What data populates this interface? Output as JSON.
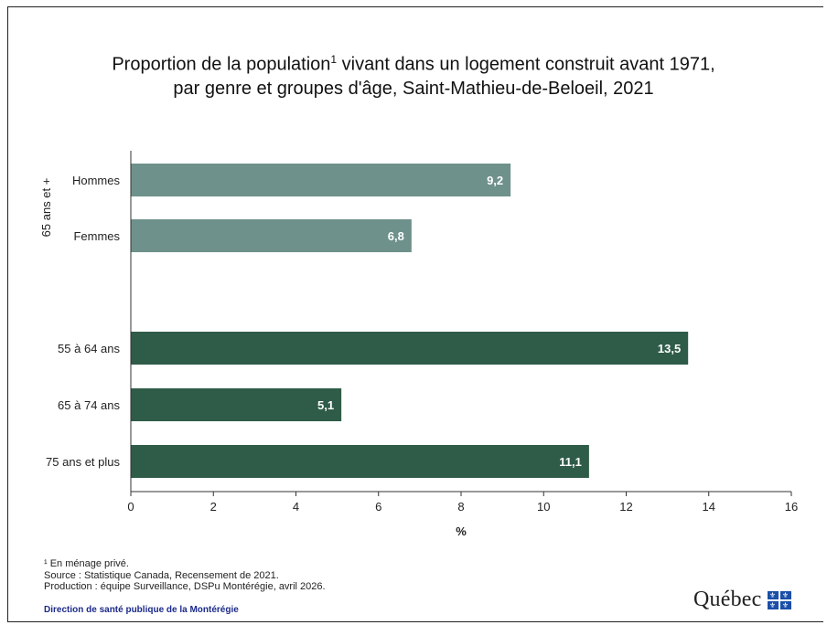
{
  "title_line1": "Proportion de la population",
  "title_sup": "1",
  "title_line1_rest": " vivant dans un logement construit avant 1971,",
  "title_line2": "par genre et groupes d'âge, Saint-Mathieu-de-Beloeil, 2021",
  "notes": {
    "line1": "¹ En ménage privé.",
    "line2": "Source : Statistique Canada, Recensement de 2021.",
    "line3": "Production : équipe Surveillance, DSPu Montérégie, avril 2026."
  },
  "department": "Direction de santé publique de la Montérégie",
  "logo_text": "Québec",
  "colors": {
    "light_bar": "#6e918b",
    "dark_bar": "#2f5c48",
    "axis": "#333333"
  },
  "chart_data": {
    "type": "bar",
    "orientation": "horizontal",
    "group_label": "65 ans et +",
    "categories": [
      "Hommes",
      "Femmes",
      "55 à 64 ans",
      "65 à 74 ans",
      "75 ans et plus"
    ],
    "values": [
      9.2,
      6.8,
      13.5,
      5.1,
      11.1
    ],
    "value_labels": [
      "9,2",
      "6,8",
      "13,5",
      "5,1",
      "11,1"
    ],
    "bar_group": [
      "light",
      "light",
      "dark",
      "dark",
      "dark"
    ],
    "xlabel": "%",
    "xlim": [
      0,
      16
    ],
    "xticks": [
      0,
      2,
      4,
      6,
      8,
      10,
      12,
      14,
      16
    ],
    "grid": false
  }
}
